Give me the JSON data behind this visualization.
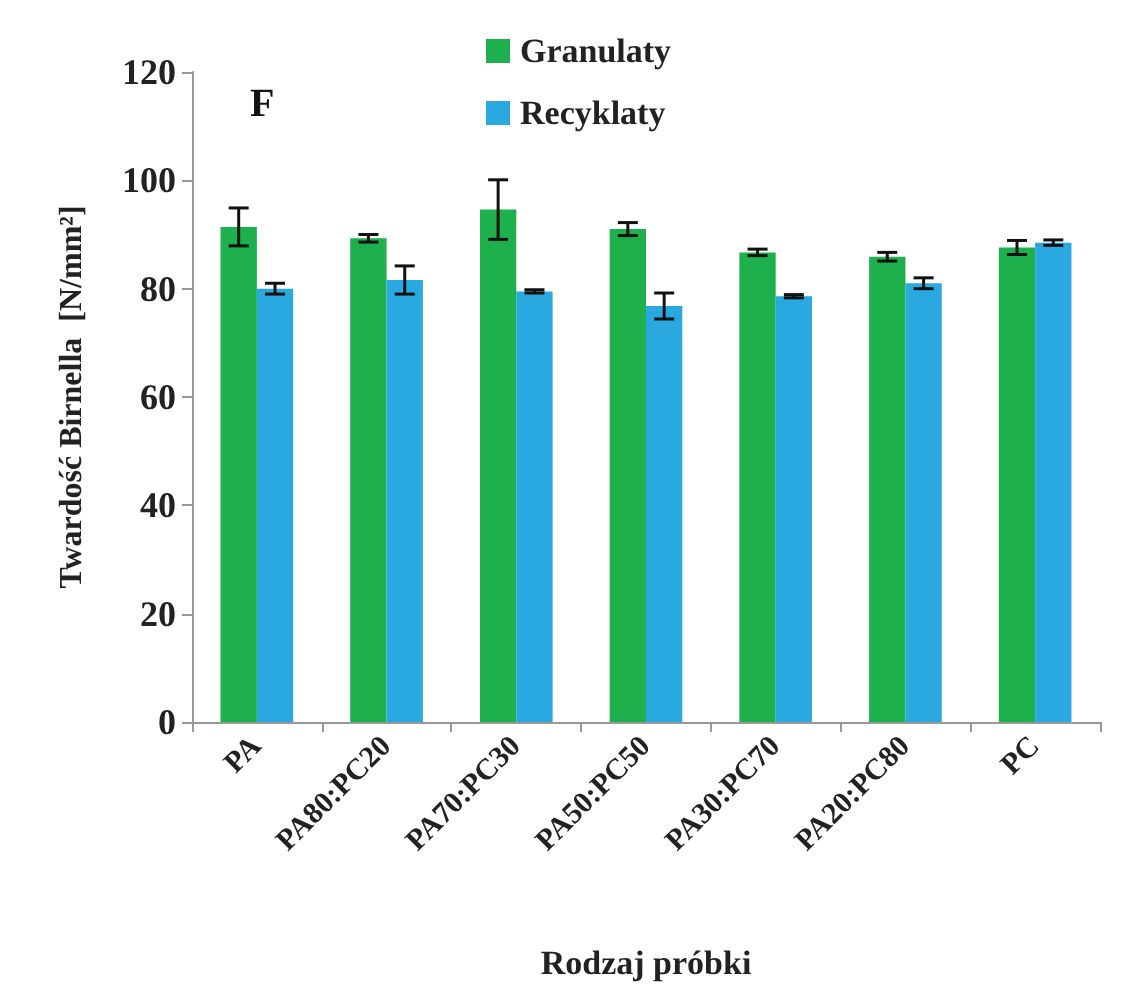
{
  "chart_data": {
    "type": "bar",
    "xlabel": "Rodzaj próbki",
    "ylabel": "Twardość Birnella  [N/mm²]",
    "annotations": [
      "F"
    ],
    "categories": [
      "PA",
      "PA80:PC20",
      "PA70:PC30",
      "PA50:PC50",
      "PA30:PC70",
      "PA20:PC80",
      "PC"
    ],
    "series": [
      {
        "name": "Granulaty",
        "color": "#1db04c",
        "values": [
          91.4,
          89.3,
          94.6,
          91.0,
          86.7,
          85.9,
          87.6
        ],
        "errors": [
          3.5,
          0.7,
          5.5,
          1.2,
          0.6,
          0.8,
          1.3
        ]
      },
      {
        "name": "Recyklaty",
        "color": "#29a9e0",
        "values": [
          80.0,
          81.6,
          79.5,
          76.8,
          78.6,
          81.0,
          88.5
        ],
        "errors": [
          1.0,
          2.6,
          0.3,
          2.4,
          0.3,
          1.0,
          0.5
        ]
      }
    ],
    "ylim": [
      0,
      120
    ],
    "yticks": [
      0,
      20,
      40,
      60,
      80,
      100,
      120
    ],
    "grid": false,
    "legend": "top"
  }
}
